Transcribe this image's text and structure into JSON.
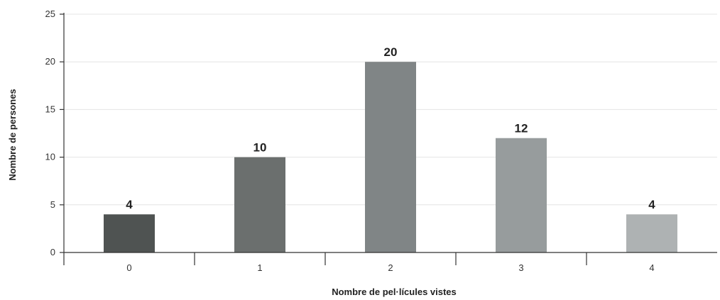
{
  "chart_data": {
    "type": "bar",
    "categories": [
      "0",
      "1",
      "2",
      "3",
      "4"
    ],
    "values": [
      4,
      10,
      20,
      12,
      4
    ],
    "data_labels": [
      "4",
      "10",
      "20",
      "12",
      "4"
    ],
    "xlabel": "Nombre de pel·lícules vistes",
    "ylabel": "Nombre de persones",
    "ylim": [
      0,
      25
    ],
    "yticks": [
      0,
      5,
      10,
      15,
      20,
      25
    ],
    "ytick_labels": [
      "0",
      "5",
      "10",
      "15",
      "20",
      "25"
    ],
    "grid": true,
    "legend": "none",
    "bar_colors": [
      "#4f5352",
      "#6b6f6e",
      "#808586",
      "#979c9d",
      "#aeb2b3"
    ]
  }
}
